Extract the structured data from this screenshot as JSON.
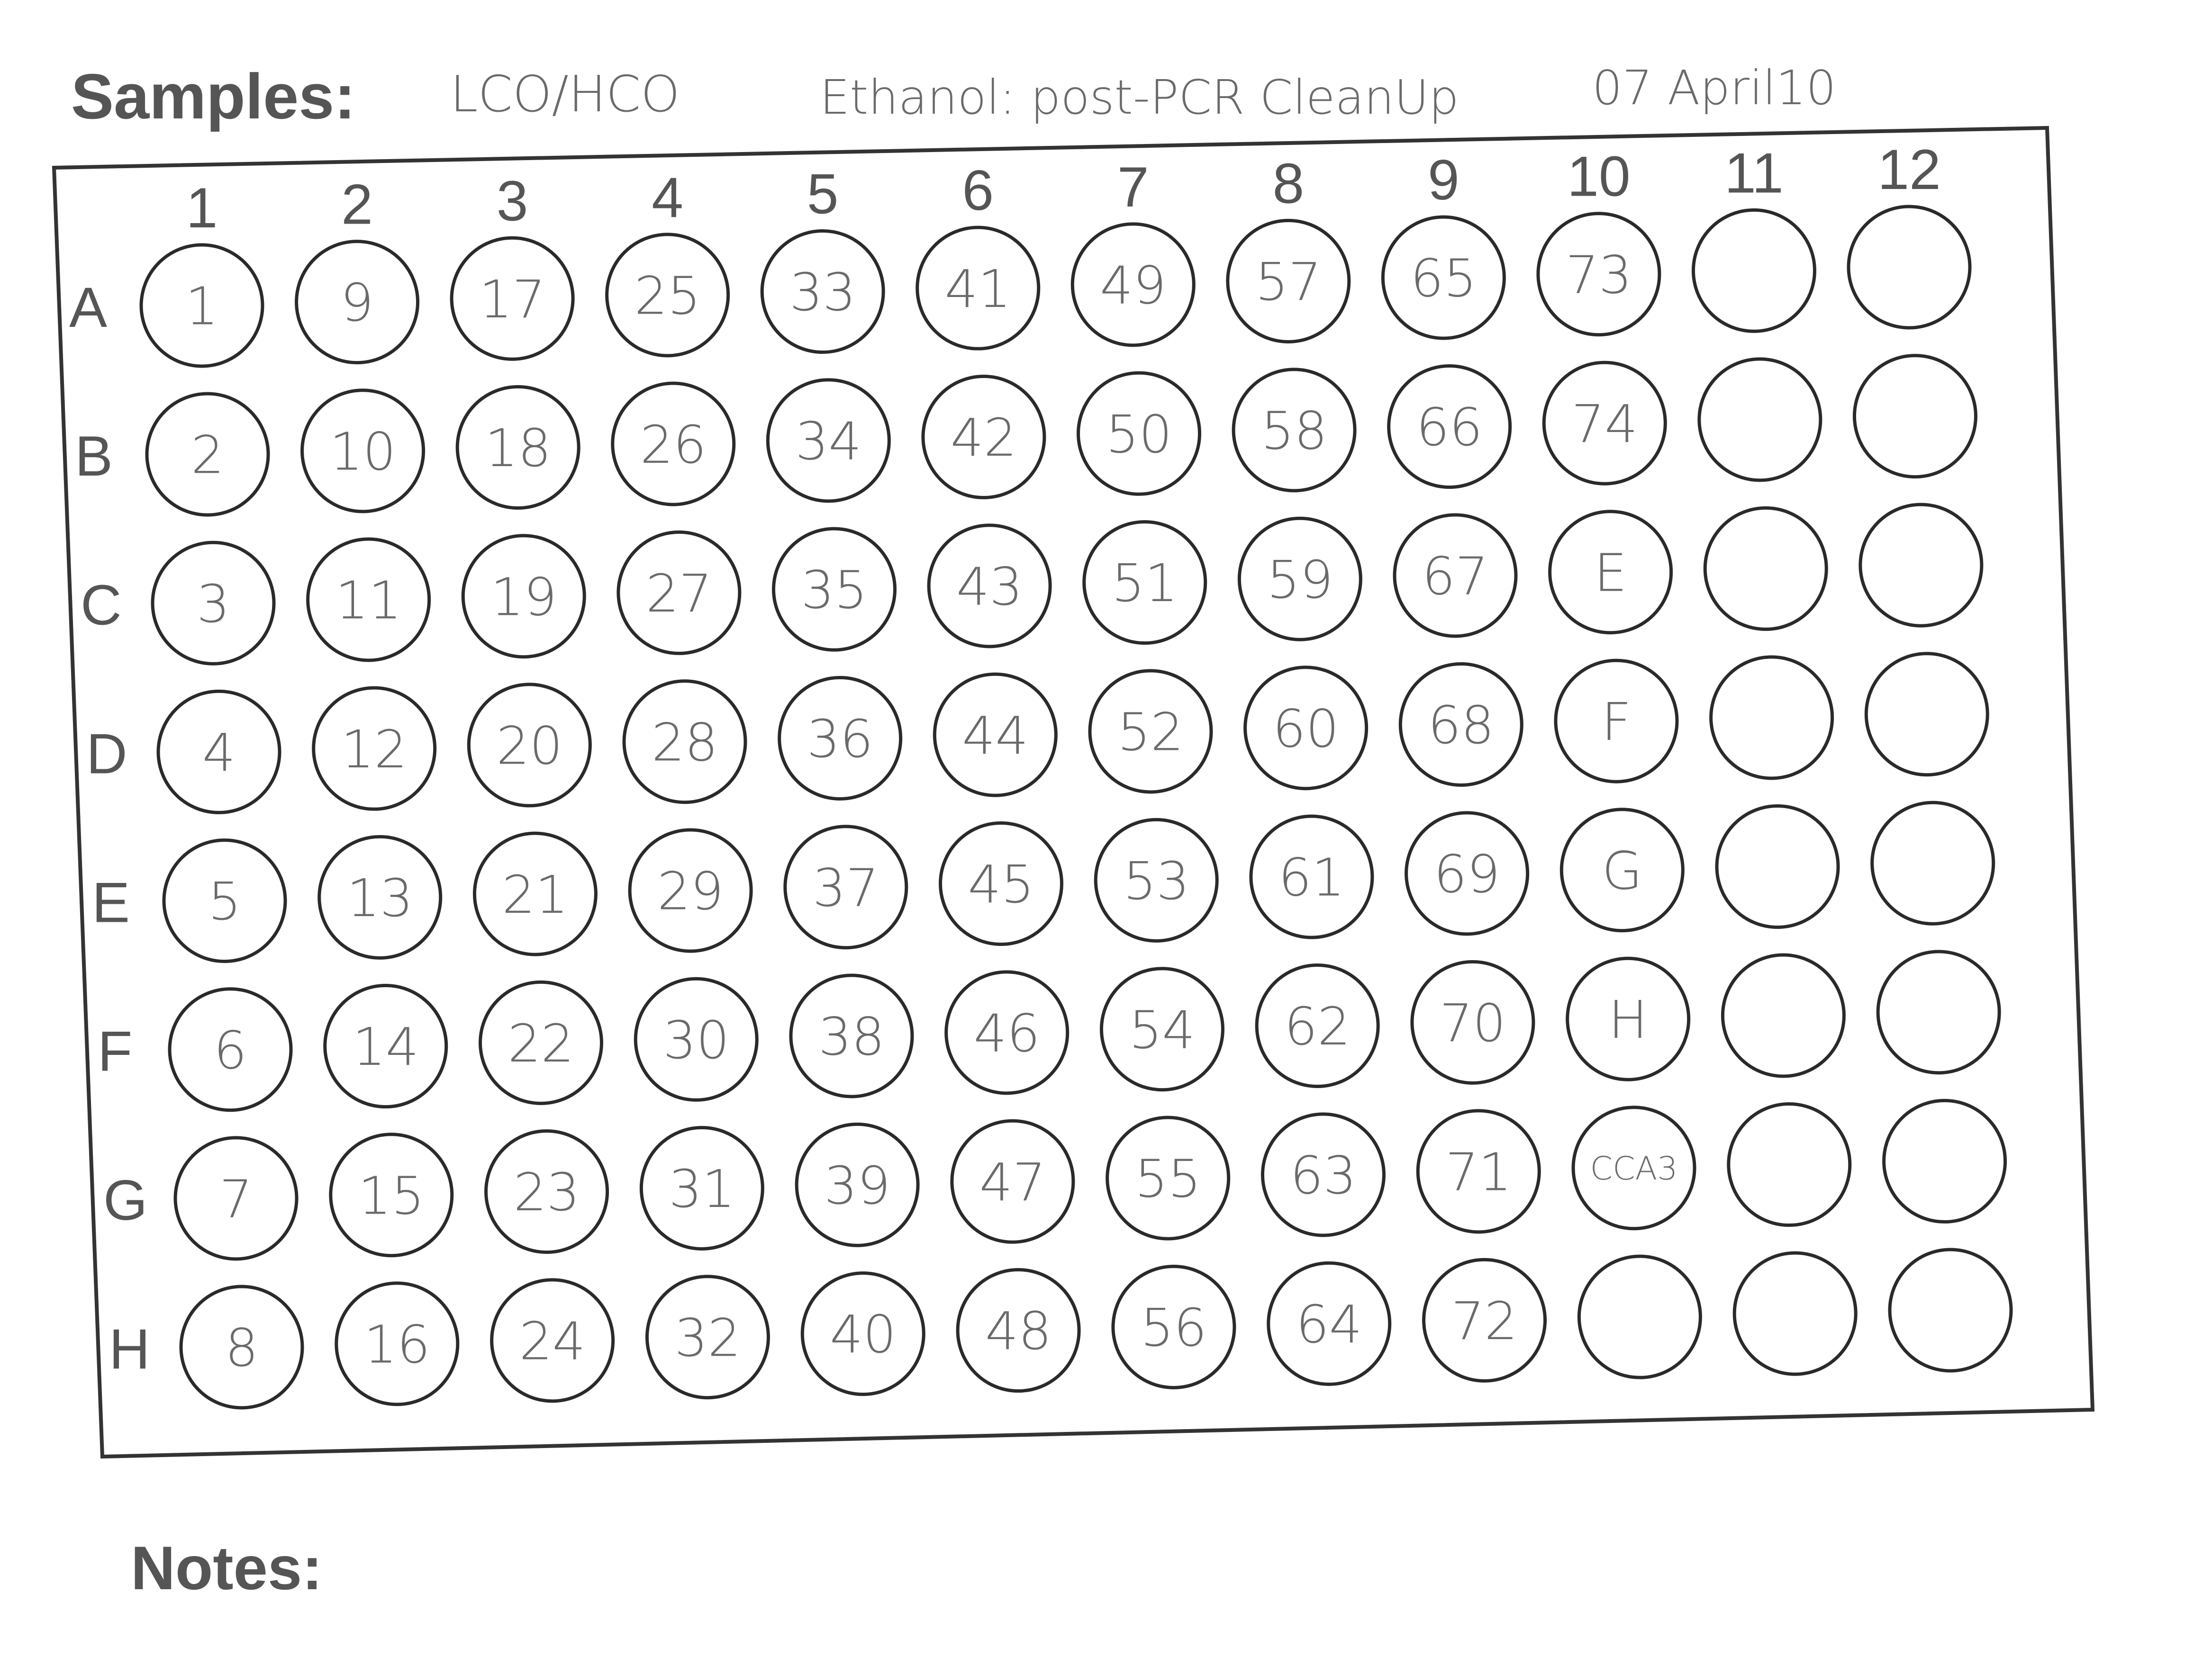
{
  "header": {
    "samples_label": "Samples:",
    "handwritten": [
      "LCO/HCO",
      "Ethanol: post-PCR CleanUp",
      "07 April10"
    ]
  },
  "notes_label": "Notes:",
  "plate": {
    "columns": [
      "1",
      "2",
      "3",
      "4",
      "5",
      "6",
      "7",
      "8",
      "9",
      "10",
      "11",
      "12"
    ],
    "rows": [
      "A",
      "B",
      "C",
      "D",
      "E",
      "F",
      "G",
      "H"
    ],
    "wells": [
      [
        "1",
        "9",
        "17",
        "25",
        "33",
        "41",
        "49",
        "57",
        "65",
        "73",
        "",
        ""
      ],
      [
        "2",
        "10",
        "18",
        "26",
        "34",
        "42",
        "50",
        "58",
        "66",
        "74",
        "",
        ""
      ],
      [
        "3",
        "11",
        "19",
        "27",
        "35",
        "43",
        "51",
        "59",
        "67",
        "E",
        "",
        ""
      ],
      [
        "4",
        "12",
        "20",
        "28",
        "36",
        "44",
        "52",
        "60",
        "68",
        "F",
        "",
        ""
      ],
      [
        "5",
        "13",
        "21",
        "29",
        "37",
        "45",
        "53",
        "61",
        "69",
        "G",
        "",
        ""
      ],
      [
        "6",
        "14",
        "22",
        "30",
        "38",
        "46",
        "54",
        "62",
        "70",
        "H",
        "",
        ""
      ],
      [
        "7",
        "15",
        "23",
        "31",
        "39",
        "47",
        "55",
        "63",
        "71",
        "CCA3",
        "",
        ""
      ],
      [
        "8",
        "16",
        "24",
        "32",
        "40",
        "48",
        "56",
        "64",
        "72",
        "",
        "",
        ""
      ]
    ]
  },
  "colors": {
    "ink": "#333333",
    "pencil": "#6a6a6a"
  }
}
